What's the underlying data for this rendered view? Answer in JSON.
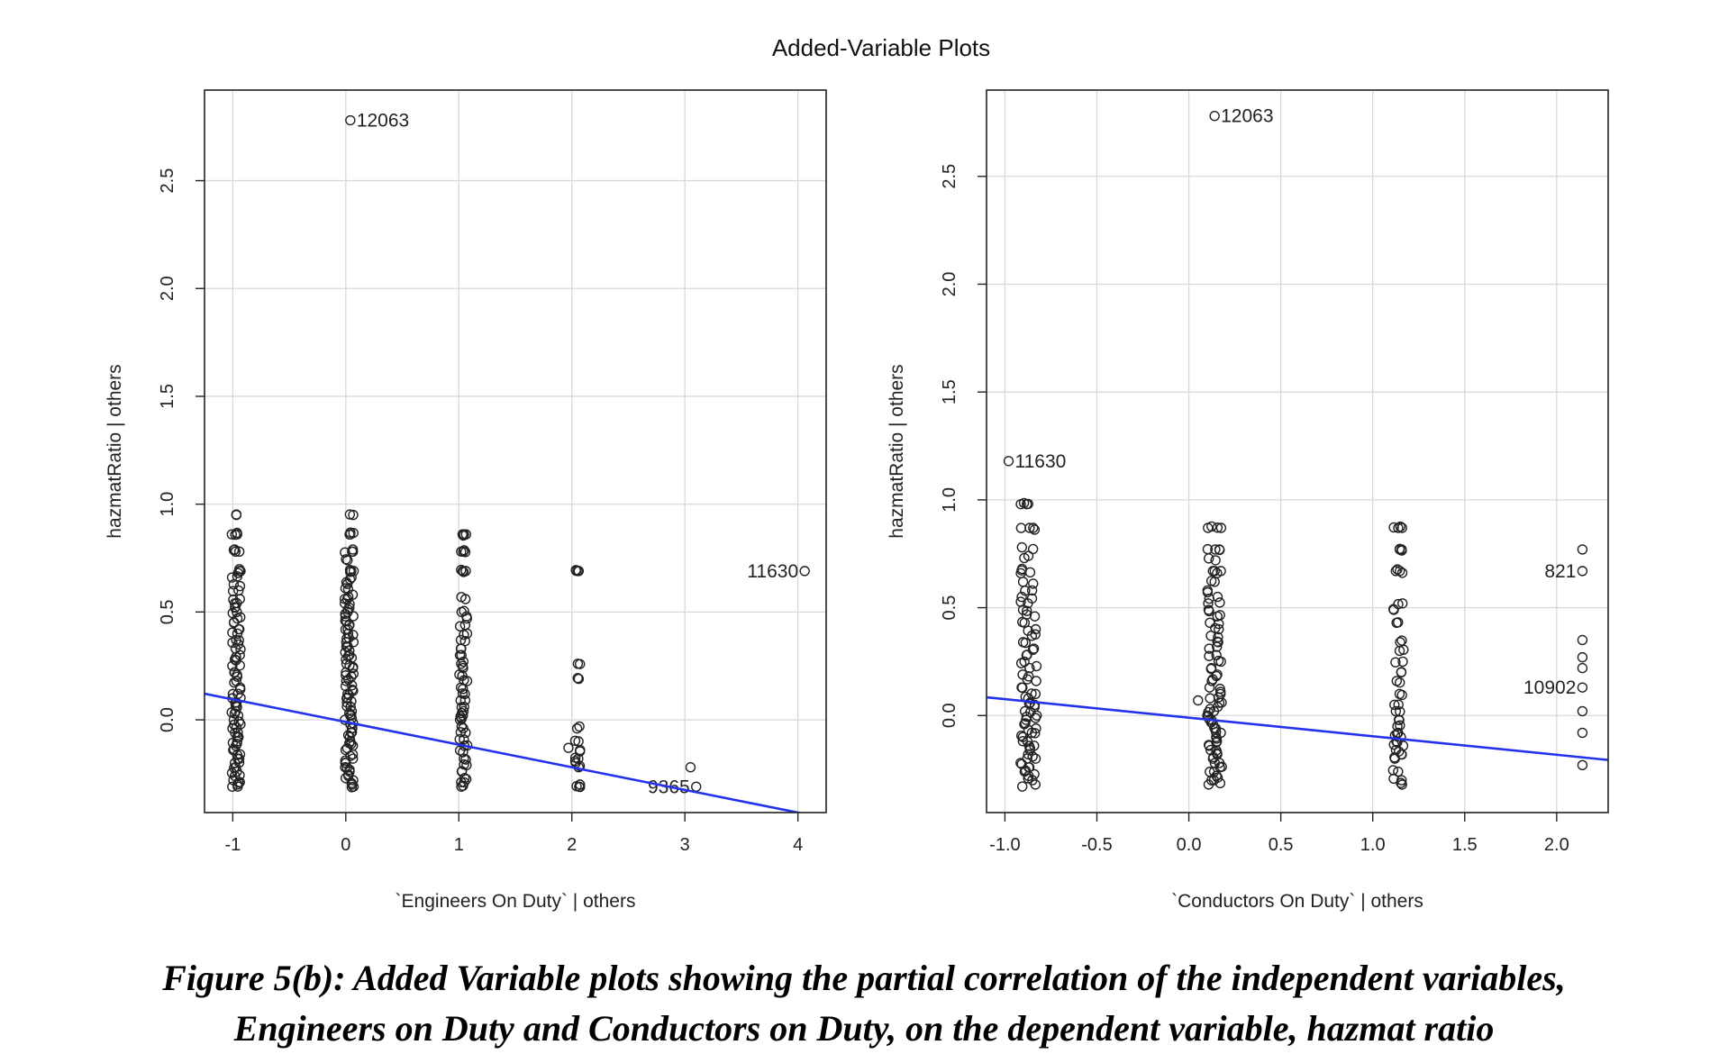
{
  "figure_title": "Added-Variable Plots",
  "caption": {
    "line1": "Figure 5(b): Added Variable plots showing the partial correlation of the independent variables,",
    "line2": "Engineers on Duty and Conductors on Duty, on the dependent variable, hazmat ratio"
  },
  "colors": {
    "regression_line": "#2233ee",
    "points": "#222222",
    "grid": "#d9d9d9"
  },
  "chart_data": [
    {
      "type": "scatter",
      "title": "",
      "xlabel": "`Engineers On Duty` | others",
      "ylabel": "hazmatRatio | others",
      "xlim": [
        -1.25,
        4.25
      ],
      "ylim": [
        -0.43,
        2.92
      ],
      "xticks": [
        -1,
        0,
        1,
        2,
        3,
        4
      ],
      "xtick_labels": [
        "-1",
        "0",
        "1",
        "2",
        "3",
        "4"
      ],
      "yticks": [
        0.0,
        0.5,
        1.0,
        1.5,
        2.0,
        2.5
      ],
      "ytick_labels": [
        "0.0",
        "0.5",
        "1.0",
        "1.5",
        "2.0",
        "2.5"
      ],
      "grid": true,
      "regression_line": {
        "intercept": -0.01,
        "slope": -0.105
      },
      "annotations": [
        {
          "label": "12063",
          "x": 0.04,
          "y": 2.78,
          "side": "right"
        },
        {
          "label": "11630",
          "x": 4.06,
          "y": 0.69,
          "side": "left"
        },
        {
          "label": "9365",
          "x": 3.1,
          "y": -0.31,
          "side": "left"
        }
      ],
      "clusters": [
        {
          "x": -0.97,
          "spread": 0.08,
          "y": [
            0.95,
            0.86,
            0.86,
            0.78,
            0.78,
            0.69,
            0.69,
            0.66,
            0.62,
            0.6,
            0.56,
            0.54,
            0.52,
            0.5,
            0.47,
            0.45,
            0.42,
            0.4,
            0.37,
            0.35,
            0.33,
            0.3,
            0.28,
            0.25,
            0.22,
            0.2,
            0.18,
            0.15,
            0.12,
            0.1,
            0.08,
            0.06,
            0.04,
            0.02,
            0.0,
            -0.02,
            -0.04,
            -0.06,
            -0.08,
            -0.1,
            -0.12,
            -0.14,
            -0.16,
            -0.18,
            -0.2,
            -0.22,
            -0.24,
            -0.26,
            -0.28,
            -0.3,
            -0.31
          ]
        },
        {
          "x": 0.03,
          "spread": 0.08,
          "y": [
            0.95,
            0.86,
            0.86,
            0.78,
            0.78,
            0.74,
            0.69,
            0.69,
            0.66,
            0.63,
            0.61,
            0.58,
            0.56,
            0.54,
            0.52,
            0.5,
            0.48,
            0.46,
            0.44,
            0.42,
            0.4,
            0.38,
            0.36,
            0.34,
            0.32,
            0.3,
            0.28,
            0.26,
            0.24,
            0.22,
            0.2,
            0.18,
            0.16,
            0.14,
            0.12,
            0.1,
            0.08,
            0.06,
            0.04,
            0.02,
            0.0,
            -0.02,
            -0.04,
            -0.06,
            -0.08,
            -0.1,
            -0.12,
            -0.14,
            -0.16,
            -0.18,
            -0.2,
            -0.22,
            -0.24,
            -0.26,
            -0.28,
            -0.3,
            -0.31
          ]
        },
        {
          "x": 1.04,
          "spread": 0.07,
          "y": [
            0.86,
            0.86,
            0.78,
            0.78,
            0.69,
            0.69,
            0.56,
            0.5,
            0.47,
            0.44,
            0.4,
            0.37,
            0.33,
            0.3,
            0.27,
            0.24,
            0.21,
            0.18,
            0.15,
            0.12,
            0.09,
            0.06,
            0.04,
            0.02,
            0.0,
            -0.03,
            -0.06,
            -0.09,
            -0.12,
            -0.15,
            -0.18,
            -0.21,
            -0.24,
            -0.27,
            -0.29,
            -0.31
          ]
        },
        {
          "x": 2.05,
          "spread": 0.05,
          "y": [
            0.69,
            0.69,
            0.26,
            0.19,
            -0.04,
            -0.1,
            -0.14,
            -0.18,
            -0.2,
            -0.22,
            -0.3,
            -0.31
          ]
        }
      ],
      "points": [
        {
          "x": 1.97,
          "y": -0.13
        },
        {
          "x": 3.05,
          "y": -0.22
        }
      ]
    },
    {
      "type": "scatter",
      "title": "",
      "xlabel": "`Conductors On Duty` | others",
      "ylabel": "hazmatRatio | others",
      "xlim": [
        -1.1,
        2.28
      ],
      "ylim": [
        -0.45,
        2.9
      ],
      "xticks": [
        -1.0,
        -0.5,
        0.0,
        0.5,
        1.0,
        1.5,
        2.0
      ],
      "xtick_labels": [
        "-1.0",
        "-0.5",
        "0.0",
        "0.5",
        "1.0",
        "1.5",
        "2.0"
      ],
      "yticks": [
        0.0,
        0.5,
        1.0,
        1.5,
        2.0,
        2.5
      ],
      "ytick_labels": [
        "0.0",
        "0.5",
        "1.0",
        "1.5",
        "2.0",
        "2.5"
      ],
      "grid": true,
      "regression_line": {
        "intercept": -0.01,
        "slope": -0.086
      },
      "annotations": [
        {
          "label": "12063",
          "x": 0.14,
          "y": 2.78,
          "side": "right"
        },
        {
          "label": "11630",
          "x": -0.98,
          "y": 1.18,
          "side": "right"
        },
        {
          "label": "821",
          "x": 2.14,
          "y": 0.67,
          "side": "left"
        },
        {
          "label": "10902",
          "x": 2.14,
          "y": 0.13,
          "side": "left"
        }
      ],
      "clusters": [
        {
          "x": -0.87,
          "spread": 0.09,
          "y": [
            0.98,
            0.98,
            0.87,
            0.87,
            0.78,
            0.74,
            0.68,
            0.66,
            0.62,
            0.58,
            0.55,
            0.52,
            0.49,
            0.46,
            0.43,
            0.4,
            0.37,
            0.34,
            0.31,
            0.28,
            0.25,
            0.22,
            0.19,
            0.16,
            0.13,
            0.1,
            0.08,
            0.06,
            0.04,
            0.02,
            0.0,
            -0.02,
            -0.04,
            -0.06,
            -0.08,
            -0.1,
            -0.12,
            -0.14,
            -0.16,
            -0.18,
            -0.2,
            -0.22,
            -0.24,
            -0.26,
            -0.28,
            -0.3,
            -0.32
          ]
        },
        {
          "x": 0.14,
          "spread": 0.08,
          "y": [
            0.87,
            0.87,
            0.77,
            0.77,
            0.72,
            0.67,
            0.67,
            0.62,
            0.58,
            0.55,
            0.52,
            0.49,
            0.46,
            0.43,
            0.4,
            0.37,
            0.34,
            0.31,
            0.28,
            0.25,
            0.22,
            0.19,
            0.16,
            0.13,
            0.1,
            0.08,
            0.06,
            0.04,
            0.02,
            0.0,
            -0.02,
            -0.04,
            -0.06,
            -0.08,
            -0.1,
            -0.12,
            -0.14,
            -0.16,
            -0.18,
            -0.2,
            -0.22,
            -0.24,
            -0.26,
            -0.28,
            -0.3,
            -0.32
          ]
        },
        {
          "x": 1.14,
          "spread": 0.06,
          "y": [
            0.87,
            0.87,
            0.77,
            0.77,
            0.67,
            0.67,
            0.52,
            0.49,
            0.43,
            0.34,
            0.3,
            0.25,
            0.2,
            0.16,
            0.1,
            0.05,
            0.02,
            -0.02,
            -0.05,
            -0.08,
            -0.1,
            -0.12,
            -0.14,
            -0.16,
            -0.18,
            -0.2,
            -0.26,
            -0.3,
            -0.32
          ]
        }
      ],
      "points": [
        {
          "x": 0.05,
          "y": 0.07
        },
        {
          "x": 2.14,
          "y": 0.77
        },
        {
          "x": 2.14,
          "y": 0.35
        },
        {
          "x": 2.14,
          "y": 0.27
        },
        {
          "x": 2.14,
          "y": 0.22
        },
        {
          "x": 2.14,
          "y": 0.02
        },
        {
          "x": 2.14,
          "y": -0.08
        },
        {
          "x": 2.14,
          "y": -0.23
        }
      ]
    }
  ]
}
